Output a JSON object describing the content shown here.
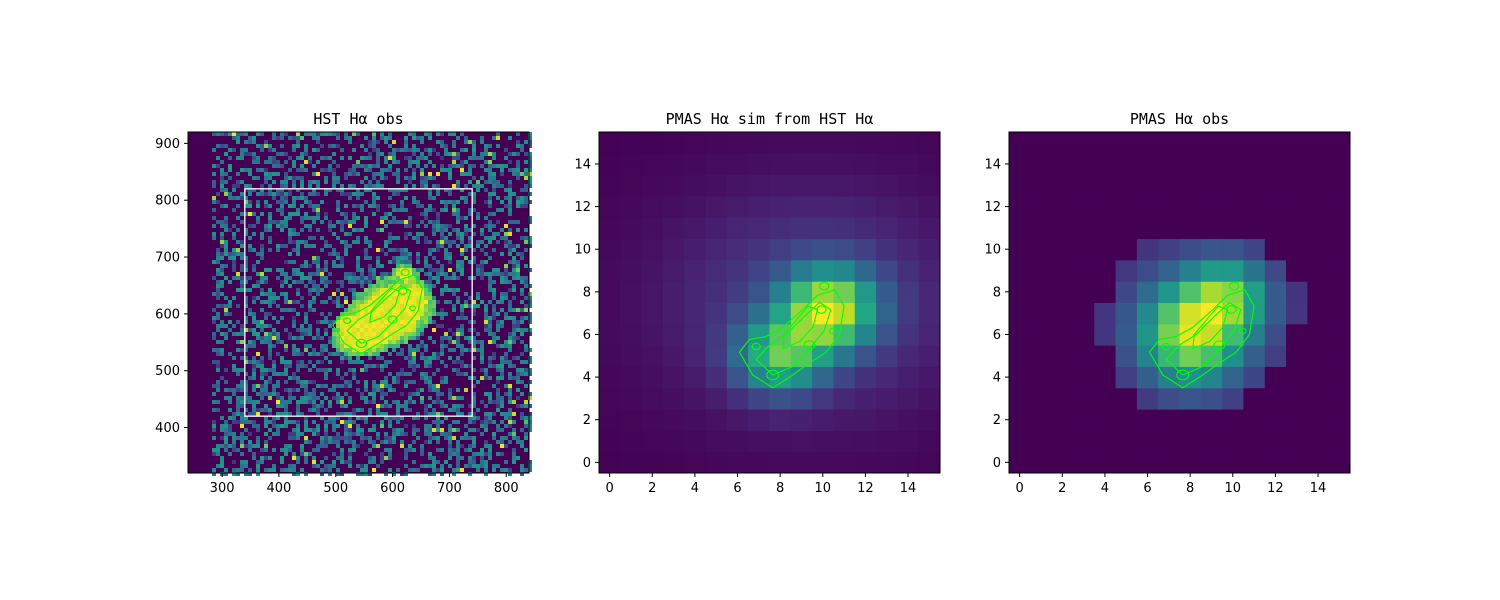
{
  "chart_data": [
    {
      "type": "heatmap",
      "title": "HST Hα obs",
      "xlim": [
        240,
        840
      ],
      "ylim": [
        320,
        920
      ],
      "xticks": [
        300,
        400,
        500,
        600,
        700,
        800
      ],
      "yticks": [
        400,
        500,
        600,
        700,
        800,
        900
      ],
      "colormap": "viridis",
      "noise_background": true,
      "blank_strip_x": [
        240,
        278
      ],
      "box": {
        "x": [
          340,
          740
        ],
        "y": [
          420,
          820
        ],
        "color": "#ffffff"
      },
      "bright_regions": [
        {
          "x": 605,
          "y": 610,
          "sx": 35,
          "sy": 28,
          "amp": 1.0
        },
        {
          "x": 575,
          "y": 585,
          "sx": 30,
          "sy": 22,
          "amp": 1.0
        },
        {
          "x": 540,
          "y": 555,
          "sx": 24,
          "sy": 16,
          "amp": 1.0
        },
        {
          "x": 520,
          "y": 585,
          "sx": 10,
          "sy": 8,
          "amp": 0.9
        },
        {
          "x": 622,
          "y": 672,
          "sx": 10,
          "sy": 8,
          "amp": 0.9
        },
        {
          "x": 640,
          "y": 625,
          "sx": 12,
          "sy": 18,
          "amp": 0.8
        }
      ],
      "dark_spot": {
        "x": 390,
        "y": 695,
        "r": 18
      },
      "contour_color": "#00ff00"
    },
    {
      "type": "heatmap",
      "title": "PMAS Hα sim from HST Hα",
      "xlim": [
        -0.5,
        15.5
      ],
      "ylim": [
        -0.5,
        15.5
      ],
      "xticks": [
        0,
        2,
        4,
        6,
        8,
        10,
        12,
        14
      ],
      "yticks": [
        0,
        2,
        4,
        6,
        8,
        10,
        12,
        14
      ],
      "colormap": "viridis",
      "grid_size": 16,
      "components": [
        {
          "x": 10.3,
          "y": 7.2,
          "sx": 1.5,
          "sy": 1.3,
          "amp": 1.0
        },
        {
          "x": 8.0,
          "y": 5.0,
          "sx": 1.4,
          "sy": 1.2,
          "amp": 0.72
        },
        {
          "x": 9.5,
          "y": 7.5,
          "sx": 4.5,
          "sy": 3.5,
          "amp": 0.22
        }
      ],
      "contour_color": "#00ff00"
    },
    {
      "type": "heatmap",
      "title": "PMAS Hα obs",
      "xlim": [
        -0.5,
        15.5
      ],
      "ylim": [
        -0.5,
        15.5
      ],
      "xticks": [
        0,
        2,
        4,
        6,
        8,
        10,
        12,
        14
      ],
      "yticks": [
        0,
        2,
        4,
        6,
        8,
        10,
        12,
        14
      ],
      "colormap": "viridis",
      "grid_size": 16,
      "components": [
        {
          "x": 8.0,
          "y": 6.0,
          "sx": 1.6,
          "sy": 1.6,
          "amp": 1.0
        },
        {
          "x": 9.8,
          "y": 7.8,
          "sx": 1.3,
          "sy": 1.2,
          "amp": 0.7
        },
        {
          "x": 8.5,
          "y": 6.8,
          "sx": 3.8,
          "sy": 3.4,
          "amp": 0.3
        }
      ],
      "contour_color": "#00ff00"
    }
  ]
}
